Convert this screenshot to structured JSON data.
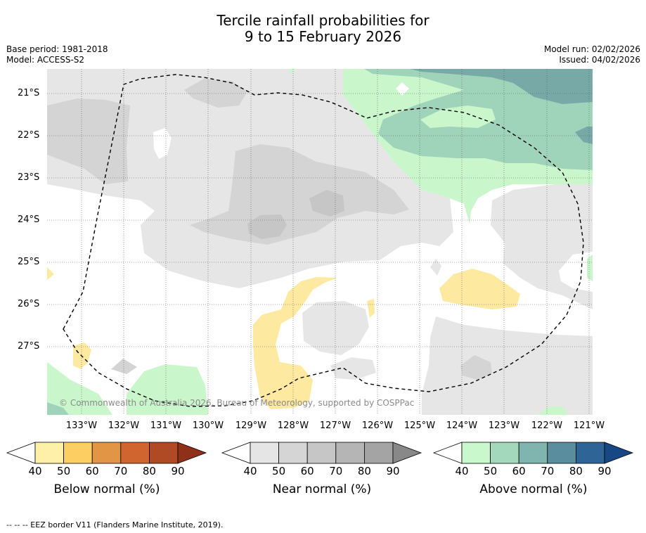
{
  "title": {
    "line1": "Tercile rainfall probabilities for",
    "line2": "9 to 15 February 2026"
  },
  "meta": {
    "base_period": "Base period: 1981-2018",
    "model": "Model: ACCESS-S2",
    "model_run": "Model run: 02/02/2026",
    "issued": "Issued: 04/02/2026"
  },
  "map": {
    "lat_labels": [
      "21°S",
      "22°S",
      "23°S",
      "24°S",
      "25°S",
      "26°S",
      "27°S"
    ],
    "lon_labels": [
      "133°W",
      "132°W",
      "131°W",
      "130°W",
      "129°W",
      "128°W",
      "127°W",
      "126°W",
      "125°W",
      "124°W",
      "123°W",
      "122°W",
      "121°W"
    ],
    "copyright": "© Commonwealth of Australia 2026, Bureau of Meteorology, supported by COSPPac",
    "colors": {
      "near_light": "#e6e6e6",
      "near_mid": "#d4d4d4",
      "near_dark": "#c6c6c6",
      "above_40": "#c9f7cb",
      "above_50": "#9fd4bb",
      "above_60": "#77aaa6",
      "below_40": "#fee9a0"
    }
  },
  "colorbars": {
    "ticks": [
      "40",
      "50",
      "60",
      "70",
      "80",
      "90"
    ],
    "below": {
      "label": "Below normal (%)",
      "colors": [
        "#fff0a8",
        "#fdcf63",
        "#e29545",
        "#d06530",
        "#b04a25",
        "#8f3018"
      ]
    },
    "near": {
      "label": "Near normal (%)",
      "colors": [
        "#e5e5e5",
        "#d5d5d5",
        "#c6c6c6",
        "#b5b5b5",
        "#a4a4a4",
        "#888888"
      ]
    },
    "above": {
      "label": "Above normal (%)",
      "colors": [
        "#c9f8cc",
        "#a3d8bd",
        "#7fb5ae",
        "#5a8e9e",
        "#2f6496",
        "#184883"
      ]
    }
  },
  "footer": "--  --  -- EEZ border V11 (Flanders Marine Institute, 2019)."
}
